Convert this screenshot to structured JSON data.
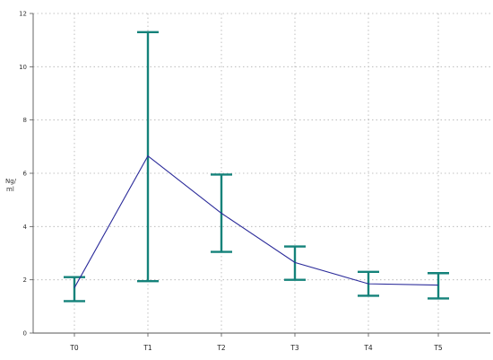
{
  "chart_data": {
    "type": "line",
    "title": "",
    "xlabel": "",
    "ylabel_lines": [
      "Ng/",
      "ml"
    ],
    "categories": [
      "T0",
      "T1",
      "T2",
      "T3",
      "T4",
      "T5"
    ],
    "series": [
      {
        "values": [
          1.7,
          6.65,
          4.5,
          2.65,
          1.85,
          1.8
        ],
        "error_low": [
          1.2,
          1.95,
          3.05,
          2.0,
          1.4,
          1.3
        ],
        "error_high": [
          2.1,
          11.3,
          5.95,
          3.25,
          2.3,
          2.25
        ],
        "line_color": "#2b2b9a",
        "error_bar_color": "#14827a"
      }
    ],
    "ylim": [
      0,
      12
    ],
    "yticks": [
      0,
      2,
      4,
      6,
      8,
      10,
      12
    ],
    "grid": true,
    "grid_color": "#b0b0b0"
  }
}
